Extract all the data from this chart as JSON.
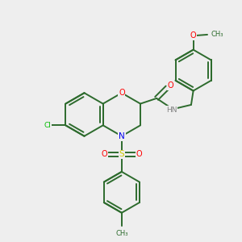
{
  "bg_color": "#eeeeee",
  "bond_color": "#2d6b2d",
  "bond_width": 1.4,
  "atom_colors": {
    "O": "#ff0000",
    "N": "#0000ee",
    "S": "#cccc00",
    "Cl": "#00bb00",
    "H": "#808080",
    "C": "#2d6b2d"
  },
  "figsize": [
    3.0,
    3.0
  ],
  "dpi": 100,
  "xlim": [
    -5.5,
    5.5
  ],
  "ylim": [
    -5.5,
    5.5
  ]
}
